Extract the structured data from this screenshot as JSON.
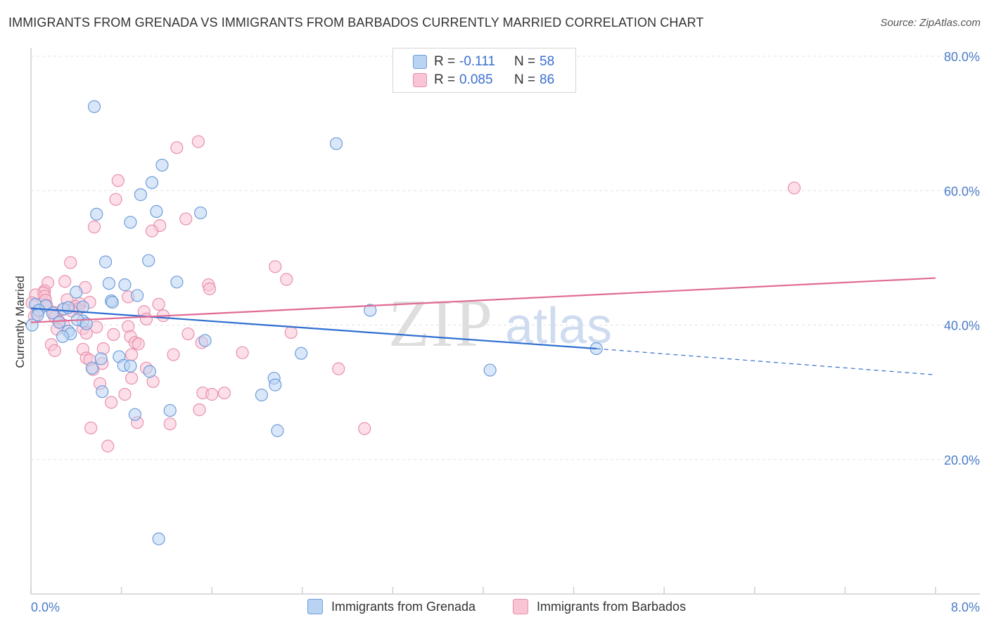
{
  "title": "IMMIGRANTS FROM GRENADA VS IMMIGRANTS FROM BARBADOS CURRENTLY MARRIED CORRELATION CHART",
  "source": "Source: ZipAtlas.com",
  "watermark": {
    "zip": "ZIP",
    "atlas": "atlas"
  },
  "legend": {
    "rows": [
      {
        "r_label": "R =",
        "r_value": "-0.111",
        "n_label": "N =",
        "n_value": "58"
      },
      {
        "r_label": "R =",
        "r_value": "0.085",
        "n_label": "N =",
        "n_value": "86"
      }
    ]
  },
  "colors": {
    "grenada_fill": "#b9d3f3",
    "grenada_stroke": "#6f9ddc",
    "grenada_line": "#2f6fd0",
    "barbados_fill": "#f9c5d5",
    "barbados_stroke": "#e891ad",
    "barbados_line": "#e06a94",
    "tick_text": "#4a7cc7",
    "grid": "#e3e3e3"
  },
  "chart_data": {
    "type": "scatter",
    "title": "IMMIGRANTS FROM GRENADA VS IMMIGRANTS FROM BARBADOS CURRENTLY MARRIED CORRELATION CHART",
    "xlabel": "",
    "ylabel": "Currently Married",
    "xlim": [
      0,
      8
    ],
    "ylim": [
      0,
      80
    ],
    "x_tick_labels": [
      "0.0%",
      "8.0%"
    ],
    "y_ticks": [
      20,
      40,
      60,
      80
    ],
    "y_tick_labels": [
      "20.0%",
      "40.0%",
      "60.0%",
      "80.0%"
    ],
    "grid": true,
    "legend_position": "top-center",
    "series": [
      {
        "name": "Immigrants from Grenada",
        "color": "#6f9ddc",
        "R": -0.111,
        "N": 58,
        "trend": {
          "x0": 0.0,
          "y0": 42.5,
          "x1": 5.0,
          "y1": 36.5,
          "dash_to_x": 8.0,
          "dash_to_y": 32.6
        },
        "points": [
          [
            0.56,
            72.5
          ],
          [
            2.7,
            67.0
          ],
          [
            1.16,
            63.8
          ],
          [
            1.07,
            61.2
          ],
          [
            0.97,
            59.4
          ],
          [
            1.5,
            56.7
          ],
          [
            0.58,
            56.5
          ],
          [
            1.11,
            56.9
          ],
          [
            0.88,
            55.3
          ],
          [
            1.04,
            49.6
          ],
          [
            0.66,
            49.4
          ],
          [
            0.69,
            46.2
          ],
          [
            0.83,
            46.0
          ],
          [
            1.29,
            46.4
          ],
          [
            0.4,
            44.9
          ],
          [
            0.94,
            44.4
          ],
          [
            0.71,
            43.6
          ],
          [
            0.72,
            43.4
          ],
          [
            0.04,
            43.1
          ],
          [
            0.13,
            42.9
          ],
          [
            0.07,
            42.2
          ],
          [
            0.29,
            42.4
          ],
          [
            0.33,
            42.6
          ],
          [
            0.46,
            42.7
          ],
          [
            0.19,
            41.8
          ],
          [
            0.06,
            41.5
          ],
          [
            0.25,
            40.4
          ],
          [
            0.46,
            40.6
          ],
          [
            0.41,
            40.8
          ],
          [
            0.49,
            40.2
          ],
          [
            0.01,
            40.0
          ],
          [
            0.33,
            39.1
          ],
          [
            0.35,
            38.7
          ],
          [
            0.28,
            38.3
          ],
          [
            1.54,
            37.7
          ],
          [
            3.0,
            42.2
          ],
          [
            5.0,
            36.5
          ],
          [
            2.39,
            35.8
          ],
          [
            0.62,
            35.0
          ],
          [
            0.78,
            35.3
          ],
          [
            0.82,
            34.0
          ],
          [
            0.88,
            33.9
          ],
          [
            0.54,
            33.6
          ],
          [
            1.05,
            33.1
          ],
          [
            4.06,
            33.3
          ],
          [
            2.15,
            32.1
          ],
          [
            2.16,
            31.1
          ],
          [
            0.63,
            30.1
          ],
          [
            2.04,
            29.6
          ],
          [
            0.92,
            26.7
          ],
          [
            1.23,
            27.3
          ],
          [
            2.18,
            24.3
          ],
          [
            1.13,
            8.2
          ]
        ]
      },
      {
        "name": "Immigrants from Barbados",
        "color": "#e891ad",
        "R": 0.085,
        "N": 86,
        "trend": {
          "x0": 0.0,
          "y0": 40.4,
          "x1": 8.0,
          "y1": 47.0
        },
        "points": [
          [
            1.48,
            67.3
          ],
          [
            1.29,
            66.4
          ],
          [
            0.77,
            61.5
          ],
          [
            6.75,
            60.4
          ],
          [
            0.75,
            58.7
          ],
          [
            1.37,
            55.8
          ],
          [
            1.14,
            54.8
          ],
          [
            0.56,
            54.6
          ],
          [
            1.07,
            54.0
          ],
          [
            2.16,
            48.7
          ],
          [
            0.35,
            49.3
          ],
          [
            2.26,
            46.8
          ],
          [
            0.15,
            46.3
          ],
          [
            0.3,
            46.5
          ],
          [
            1.57,
            46.0
          ],
          [
            0.48,
            45.6
          ],
          [
            1.58,
            45.4
          ],
          [
            0.12,
            45.1
          ],
          [
            0.11,
            44.8
          ],
          [
            0.04,
            44.5
          ],
          [
            0.12,
            44.3
          ],
          [
            0.86,
            44.2
          ],
          [
            0.32,
            43.8
          ],
          [
            0.13,
            43.7
          ],
          [
            1.13,
            43.1
          ],
          [
            0.52,
            43.4
          ],
          [
            0.43,
            43.2
          ],
          [
            0.01,
            43.3
          ],
          [
            0.14,
            42.9
          ],
          [
            0.39,
            42.8
          ],
          [
            0.42,
            42.4
          ],
          [
            0.28,
            42.3
          ],
          [
            0.36,
            42.1
          ],
          [
            1.0,
            42.0
          ],
          [
            0.2,
            41.9
          ],
          [
            0.06,
            41.9
          ],
          [
            1.17,
            41.4
          ],
          [
            0.03,
            41.3
          ],
          [
            0.21,
            41.2
          ],
          [
            1.02,
            40.9
          ],
          [
            0.25,
            40.5
          ],
          [
            0.29,
            40.0
          ],
          [
            0.58,
            39.7
          ],
          [
            0.46,
            39.5
          ],
          [
            0.86,
            39.8
          ],
          [
            0.23,
            39.4
          ],
          [
            2.3,
            38.9
          ],
          [
            0.49,
            38.8
          ],
          [
            0.73,
            38.6
          ],
          [
            1.39,
            38.7
          ],
          [
            0.88,
            38.3
          ],
          [
            0.92,
            37.4
          ],
          [
            0.95,
            37.2
          ],
          [
            1.51,
            37.4
          ],
          [
            0.18,
            37.1
          ],
          [
            0.46,
            36.4
          ],
          [
            0.64,
            36.5
          ],
          [
            0.21,
            36.2
          ],
          [
            1.87,
            35.9
          ],
          [
            1.26,
            35.6
          ],
          [
            0.89,
            35.6
          ],
          [
            0.49,
            35.1
          ],
          [
            0.52,
            34.8
          ],
          [
            0.63,
            34.3
          ],
          [
            0.55,
            33.4
          ],
          [
            1.02,
            33.6
          ],
          [
            2.72,
            33.5
          ],
          [
            0.89,
            32.1
          ],
          [
            1.08,
            31.6
          ],
          [
            0.61,
            31.3
          ],
          [
            1.52,
            29.9
          ],
          [
            1.6,
            29.7
          ],
          [
            1.71,
            29.9
          ],
          [
            0.83,
            29.7
          ],
          [
            0.71,
            28.5
          ],
          [
            1.49,
            27.4
          ],
          [
            0.94,
            25.5
          ],
          [
            1.23,
            25.3
          ],
          [
            0.53,
            24.7
          ],
          [
            2.95,
            24.6
          ],
          [
            0.68,
            22.0
          ]
        ]
      }
    ]
  }
}
